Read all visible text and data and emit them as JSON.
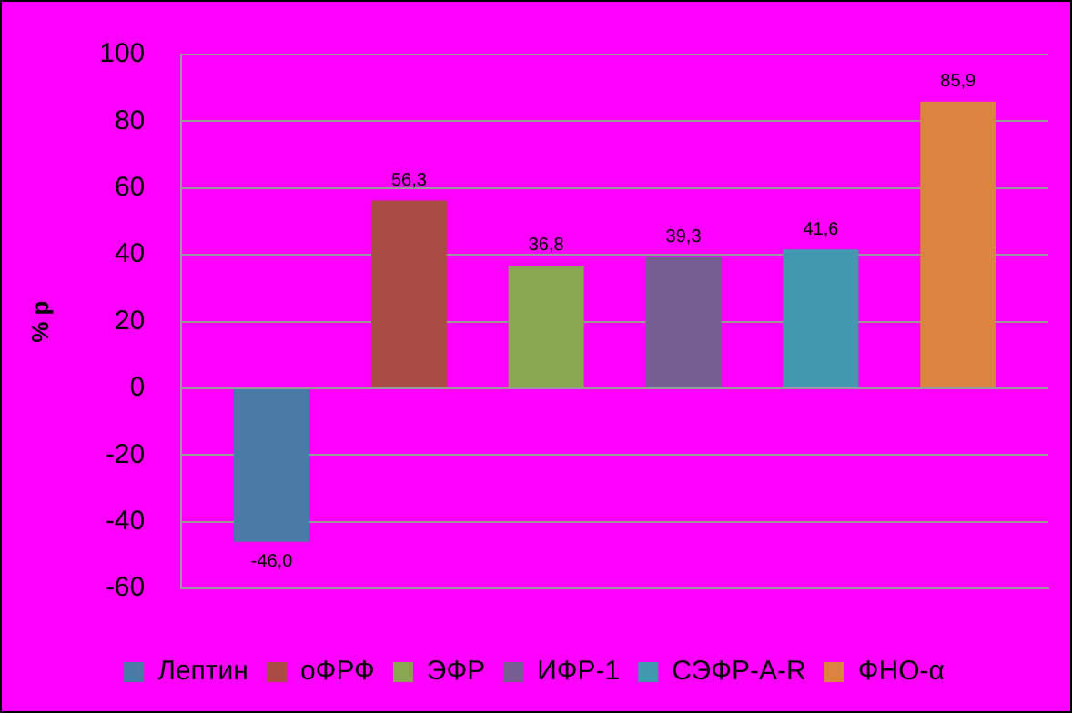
{
  "chart_data": {
    "type": "bar",
    "categories": [
      null
    ],
    "ylabel": "% р",
    "series": [
      {
        "name": "Лептин",
        "color": "#4a7ba7",
        "values": [
          -46.0
        ]
      },
      {
        "name": "оФРФ",
        "color": "#ab4b46",
        "values": [
          56.3
        ]
      },
      {
        "name": "ЭФР",
        "color": "#8aa852",
        "values": [
          36.8
        ]
      },
      {
        "name": "ИФР-1",
        "color": "#765e92",
        "values": [
          39.3
        ]
      },
      {
        "name": "СЭФР-A-R",
        "color": "#4298ae",
        "values": [
          41.6
        ]
      },
      {
        "name": "ФНО-α",
        "color": "#db8341",
        "values": [
          85.9
        ]
      }
    ],
    "value_labels": [
      [
        "-46,0"
      ],
      [
        "56,3"
      ],
      [
        "36,8"
      ],
      [
        "39,3"
      ],
      [
        "41,6"
      ],
      [
        "85,9"
      ]
    ],
    "ylim": [
      -60,
      100
    ],
    "yticks": [
      -60,
      -40,
      -20,
      0,
      20,
      40,
      60,
      80,
      100
    ],
    "grid": "y",
    "legend": "bottom"
  }
}
